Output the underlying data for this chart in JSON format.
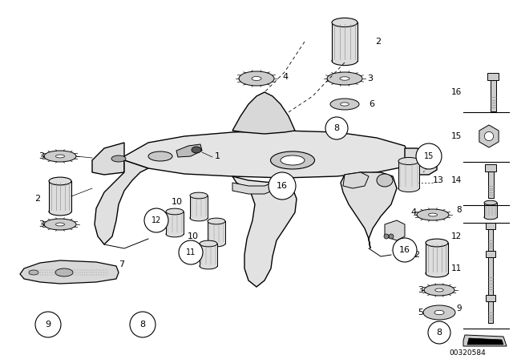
{
  "bg_color": "#ffffff",
  "part_number": "00320584",
  "fig_width": 6.4,
  "fig_height": 4.48,
  "dpi": 100,
  "black": "#000000",
  "gray_light": "#cccccc",
  "gray_mid": "#888888",
  "gray_fill": "#e8e8e8"
}
